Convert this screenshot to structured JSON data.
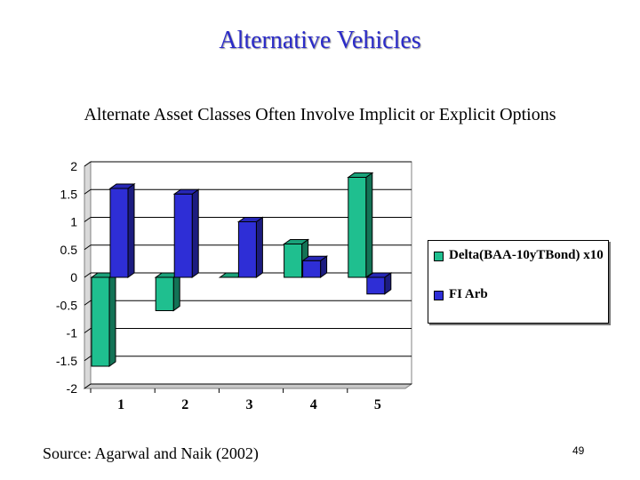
{
  "slide": {
    "title": "Alternative Vehicles",
    "subtitle": "Alternate Asset Classes Often Involve Implicit or Explicit Options",
    "source": "Source: Agarwal and Naik (2002)",
    "page_number": "49"
  },
  "chart_data": {
    "type": "bar",
    "categories": [
      "1",
      "2",
      "3",
      "4",
      "5"
    ],
    "series": [
      {
        "name": "Delta(BAA-10yTBond) x10",
        "values": [
          -1.6,
          -0.6,
          0,
          0.6,
          1.8
        ],
        "color": "#1fbf8f"
      },
      {
        "name": "FI Arb",
        "values": [
          1.6,
          1.5,
          1.0,
          0.3,
          -0.3
        ],
        "color": "#2e2ed6"
      }
    ],
    "yticks": [
      "2",
      "1.5",
      "1",
      "0.5",
      "0",
      "-0.5",
      "-1",
      "-1.5",
      "-2"
    ],
    "ylim": [
      -2,
      2
    ],
    "grid": true,
    "legend": "right",
    "three_d": true
  }
}
